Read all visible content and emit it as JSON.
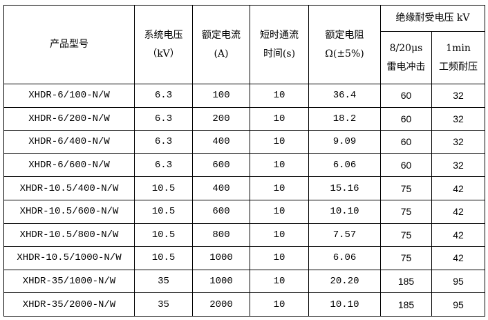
{
  "headers": {
    "model": "产品型号",
    "voltage": [
      "系统电压",
      "（kV）"
    ],
    "current": [
      "额定电流",
      "(A)"
    ],
    "short_time": [
      "短时通流",
      "时间(s)"
    ],
    "resistance": [
      "额定电阻",
      "Ω(±5%)"
    ],
    "insulation": "绝缘耐受电压 kV",
    "lightning": [
      "8/20μs",
      "雷电冲击"
    ],
    "power_freq": [
      "1min",
      "工频耐压"
    ]
  },
  "rows": [
    [
      "XHDR-6/100-N/W",
      "6.3",
      "100",
      "10",
      "36.4",
      "60",
      "32"
    ],
    [
      "XHDR-6/200-N/W",
      "6.3",
      "200",
      "10",
      "18.2",
      "60",
      "32"
    ],
    [
      "XHDR-6/400-N/W",
      "6.3",
      "400",
      "10",
      "9.09",
      "60",
      "32"
    ],
    [
      "XHDR-6/600-N/W",
      "6.3",
      "600",
      "10",
      "6.06",
      "60",
      "32"
    ],
    [
      "XHDR-10.5/400-N/W",
      "10.5",
      "400",
      "10",
      "15.16",
      "75",
      "42"
    ],
    [
      "XHDR-10.5/600-N/W",
      "10.5",
      "600",
      "10",
      "10.10",
      "75",
      "42"
    ],
    [
      "XHDR-10.5/800-N/W",
      "10.5",
      "800",
      "10",
      "7.57",
      "75",
      "42"
    ],
    [
      "XHDR-10.5/1000-N/W",
      "10.5",
      "1000",
      "10",
      "6.06",
      "75",
      "42"
    ],
    [
      "XHDR-35/1000-N/W",
      "35",
      "1000",
      "10",
      "20.20",
      "185",
      "95"
    ],
    [
      "XHDR-35/2000-N/W",
      "35",
      "2000",
      "10",
      "10.10",
      "185",
      "95"
    ]
  ]
}
